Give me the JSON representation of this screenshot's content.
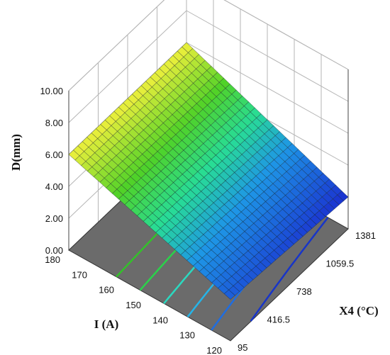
{
  "chart_data": {
    "type": "surface3d",
    "zlabel": "D(mm)",
    "xlabel": "I (A)",
    "ylabel": "X4 (°C)",
    "x_ticks": [
      "180",
      "170",
      "160",
      "150",
      "140",
      "130",
      "120"
    ],
    "y_ticks": [
      "95",
      "416.5",
      "738",
      "1059.5",
      "1381"
    ],
    "z_ticks": [
      "0.00",
      "2.00",
      "4.00",
      "6.00",
      "8.00",
      "10.00"
    ],
    "xlim": [
      120,
      180
    ],
    "ylim": [
      95,
      1381
    ],
    "zlim": [
      0,
      10
    ],
    "surface_corners": [
      {
        "I": 180,
        "X4": 95,
        "D": 6.0
      },
      {
        "I": 120,
        "X4": 95,
        "D": 2.6
      },
      {
        "I": 120,
        "X4": 1381,
        "D": 2.0
      },
      {
        "I": 180,
        "X4": 1381,
        "D": 6.0
      }
    ],
    "contour_levels": [
      {
        "D": 5.0,
        "color": "#33c12a"
      },
      {
        "D": 4.5,
        "color": "#2ad24a"
      },
      {
        "D": 4.0,
        "color": "#2bd9c0"
      },
      {
        "D": 3.5,
        "color": "#25b4e8"
      },
      {
        "D": 3.0,
        "color": "#1f6de0"
      },
      {
        "D": 2.5,
        "color": "#1835c8"
      }
    ],
    "colors": {
      "floor": "#6b6b6b",
      "grid": "#b5b5b5",
      "high": "#f0f03c",
      "low": "#1a2fd0"
    }
  }
}
